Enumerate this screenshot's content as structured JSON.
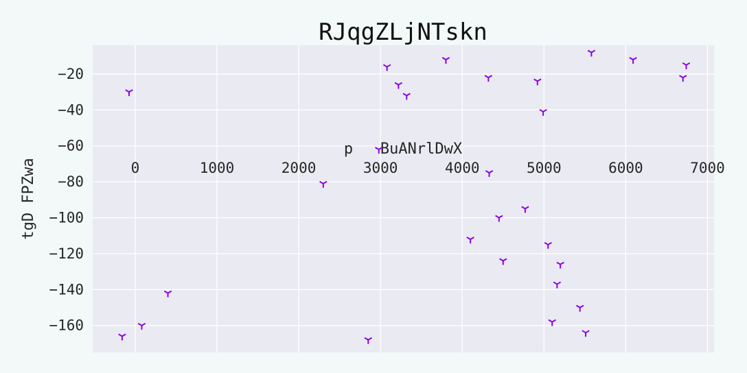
{
  "chart_data": {
    "type": "scatter",
    "title": "RJqgZLjNTskn",
    "xlabel": "p   BuANrlDwX",
    "ylabel": "tgD FPZwa",
    "xlim": [
      -520,
      7080
    ],
    "ylim": [
      -175,
      -4
    ],
    "x_ticks": [
      0,
      1000,
      2000,
      3000,
      4000,
      5000,
      6000,
      7000
    ],
    "y_ticks": [
      -20,
      -40,
      -60,
      -80,
      -100,
      -120,
      -140,
      -160
    ],
    "grid": true,
    "marker": "tri_down",
    "colors": {
      "points": "#8a00e6",
      "plot_background": "#eaeaf2",
      "grid": "#ffffff",
      "page_background": "#f3f8f8"
    },
    "series": [
      {
        "points": [
          [
            -75,
            -30
          ],
          [
            -160,
            -166
          ],
          [
            80,
            -160
          ],
          [
            400,
            -142
          ],
          [
            2300,
            -81
          ],
          [
            2850,
            -168
          ],
          [
            2980,
            -62
          ],
          [
            3080,
            -16
          ],
          [
            3220,
            -26
          ],
          [
            3320,
            -32
          ],
          [
            3800,
            -12
          ],
          [
            4100,
            -112
          ],
          [
            4320,
            -22
          ],
          [
            4330,
            -75
          ],
          [
            4450,
            -100
          ],
          [
            4500,
            -124
          ],
          [
            4770,
            -95
          ],
          [
            4920,
            -24
          ],
          [
            4990,
            -41
          ],
          [
            5050,
            -115
          ],
          [
            5100,
            -158
          ],
          [
            5160,
            -137
          ],
          [
            5200,
            -126
          ],
          [
            5440,
            -150
          ],
          [
            5510,
            -164
          ],
          [
            5580,
            -8
          ],
          [
            6090,
            -12
          ],
          [
            6700,
            -22
          ],
          [
            6740,
            -15
          ]
        ]
      }
    ]
  }
}
